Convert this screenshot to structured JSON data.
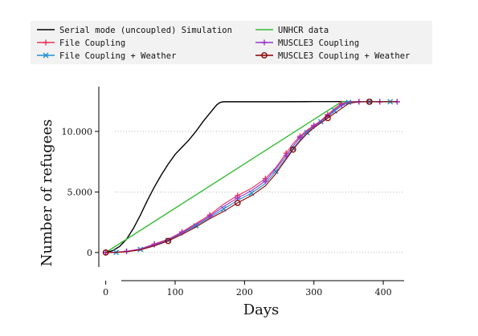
{
  "chart_data": {
    "type": "line",
    "xlabel": "Days",
    "ylabel": "Number of refugees",
    "xlim": [
      -10,
      430
    ],
    "ylim": [
      -1200,
      13700
    ],
    "x_ticks": [
      0,
      100,
      200,
      300,
      400
    ],
    "x_tick_labels": [
      "0",
      "100",
      "200",
      "300",
      "400"
    ],
    "y_ticks": [
      0,
      5000,
      10000
    ],
    "y_tick_labels": [
      "0",
      "5.000",
      "10.000"
    ],
    "grid": "horizontal dotted",
    "legend_placement": "top",
    "series": [
      {
        "name": "Serial mode (uncoupled) Simulation",
        "color": "#000000",
        "marker": "none",
        "x": [
          0,
          10,
          20,
          30,
          40,
          50,
          60,
          70,
          80,
          90,
          100,
          110,
          120,
          130,
          140,
          150,
          160,
          165,
          170,
          180,
          200,
          250,
          300,
          350,
          400,
          420
        ],
        "y": [
          0,
          150,
          500,
          1100,
          2000,
          3100,
          4300,
          5400,
          6400,
          7300,
          8100,
          8700,
          9300,
          10000,
          10800,
          11500,
          12200,
          12400,
          12450,
          12450,
          12450,
          12450,
          12460,
          12460,
          12460,
          12460
        ]
      },
      {
        "name": "UNHCR data",
        "color": "#33bb33",
        "marker": "none",
        "x": [
          0,
          340,
          420
        ],
        "y": [
          0,
          12450,
          12450
        ]
      },
      {
        "name": "File Coupling",
        "color": "#e8325a",
        "marker": "plus",
        "x": [
          0,
          15,
          30,
          50,
          70,
          90,
          110,
          130,
          150,
          170,
          190,
          210,
          230,
          245,
          260,
          270,
          280,
          290,
          300,
          310,
          320,
          330,
          340,
          350,
          365,
          380,
          395,
          410,
          420
        ],
        "y": [
          0,
          30,
          100,
          300,
          700,
          1100,
          1700,
          2400,
          3100,
          4000,
          4700,
          5300,
          6100,
          7000,
          8200,
          9000,
          9600,
          10100,
          10500,
          10900,
          11400,
          11900,
          12300,
          12450,
          12450,
          12450,
          12450,
          12450,
          12450
        ]
      },
      {
        "name": "File Coupling + Weather",
        "color": "#1f8fcf",
        "marker": "x",
        "x": [
          0,
          15,
          30,
          50,
          70,
          90,
          110,
          130,
          150,
          170,
          190,
          210,
          230,
          245,
          260,
          270,
          280,
          290,
          300,
          310,
          320,
          330,
          340,
          350,
          365,
          380,
          395,
          410,
          420
        ],
        "y": [
          0,
          20,
          80,
          260,
          600,
          1000,
          1600,
          2200,
          2900,
          3600,
          4300,
          4900,
          5700,
          6700,
          7800,
          8600,
          9300,
          9900,
          10400,
          10800,
          11200,
          11700,
          12100,
          12400,
          12450,
          12450,
          12450,
          12450,
          12450
        ]
      },
      {
        "name": "MUSCLE3 Coupling",
        "color": "#9933cc",
        "marker": "plus",
        "x": [
          0,
          15,
          30,
          50,
          70,
          90,
          110,
          130,
          150,
          170,
          190,
          210,
          230,
          245,
          260,
          270,
          280,
          290,
          300,
          310,
          320,
          330,
          340,
          350,
          365,
          380,
          395,
          410,
          420
        ],
        "y": [
          0,
          25,
          90,
          280,
          650,
          1050,
          1650,
          2300,
          3000,
          3800,
          4500,
          5100,
          5900,
          6900,
          8000,
          8800,
          9500,
          10000,
          10450,
          10850,
          11300,
          11800,
          12200,
          12450,
          12450,
          12450,
          12450,
          12450,
          12450
        ]
      },
      {
        "name": "MUSCLE3 Coupling + Weather",
        "color": "#8b0000",
        "marker": "circle",
        "x": [
          0,
          15,
          30,
          50,
          70,
          90,
          110,
          130,
          150,
          170,
          190,
          210,
          230,
          245,
          260,
          270,
          280,
          290,
          300,
          310,
          320,
          330,
          340,
          350,
          365,
          380,
          395,
          410,
          420
        ],
        "y": [
          0,
          15,
          60,
          220,
          550,
          950,
          1500,
          2100,
          2800,
          3400,
          4100,
          4700,
          5500,
          6500,
          7700,
          8500,
          9200,
          9800,
          10300,
          10700,
          11100,
          11500,
          11900,
          12300,
          12450,
          12450,
          12450,
          12450,
          12450
        ]
      }
    ]
  }
}
